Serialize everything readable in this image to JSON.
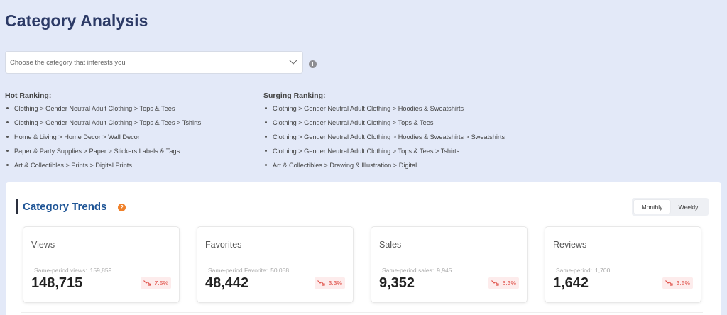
{
  "page": {
    "title": "Category Analysis"
  },
  "category_select": {
    "placeholder": "Choose the category that interests you"
  },
  "hot_ranking": {
    "title": "Hot Ranking:",
    "items": [
      "Clothing > Gender Neutral Adult Clothing > Tops & Tees",
      "Clothing > Gender Neutral Adult Clothing > Tops & Tees > Tshirts",
      "Home & Living > Home Decor > Wall Decor",
      "Paper & Party Supplies > Paper > Stickers Labels & Tags",
      "Art & Collectibles > Prints > Digital Prints"
    ]
  },
  "surging_ranking": {
    "title": "Surging Ranking:",
    "items": [
      "Clothing > Gender Neutral Adult Clothing > Hoodies & Sweatshirts",
      "Clothing > Gender Neutral Adult Clothing > Tops & Tees",
      "Clothing > Gender Neutral Adult Clothing > Hoodies & Sweatshirts > Sweatshirts",
      "Clothing > Gender Neutral Adult Clothing > Tops & Tees > Tshirts",
      "Art & Collectibles > Drawing & Illustration > Digital"
    ]
  },
  "trends": {
    "title": "Category Trends",
    "period_options": [
      "Monthly",
      "Weekly"
    ],
    "selected_period": "Monthly",
    "metrics": [
      {
        "name": "Views",
        "prev_label": "Same-period views:",
        "prev_value": "159,859",
        "value": "148,715",
        "change": "7.5%"
      },
      {
        "name": "Favorites",
        "prev_label": "Same-period Favorite:",
        "prev_value": "50,058",
        "value": "48,442",
        "change": "3.3%"
      },
      {
        "name": "Sales",
        "prev_label": "Same-period sales:",
        "prev_value": "9,945",
        "value": "9,352",
        "change": "6.3%"
      },
      {
        "name": "Reviews",
        "prev_label": "Same-period:",
        "prev_value": "1,700",
        "value": "1,642",
        "change": "3.5%"
      }
    ]
  },
  "colors": {
    "accent": "#1f5596",
    "decline": "#e0524a",
    "background": "#e3e9f8"
  }
}
